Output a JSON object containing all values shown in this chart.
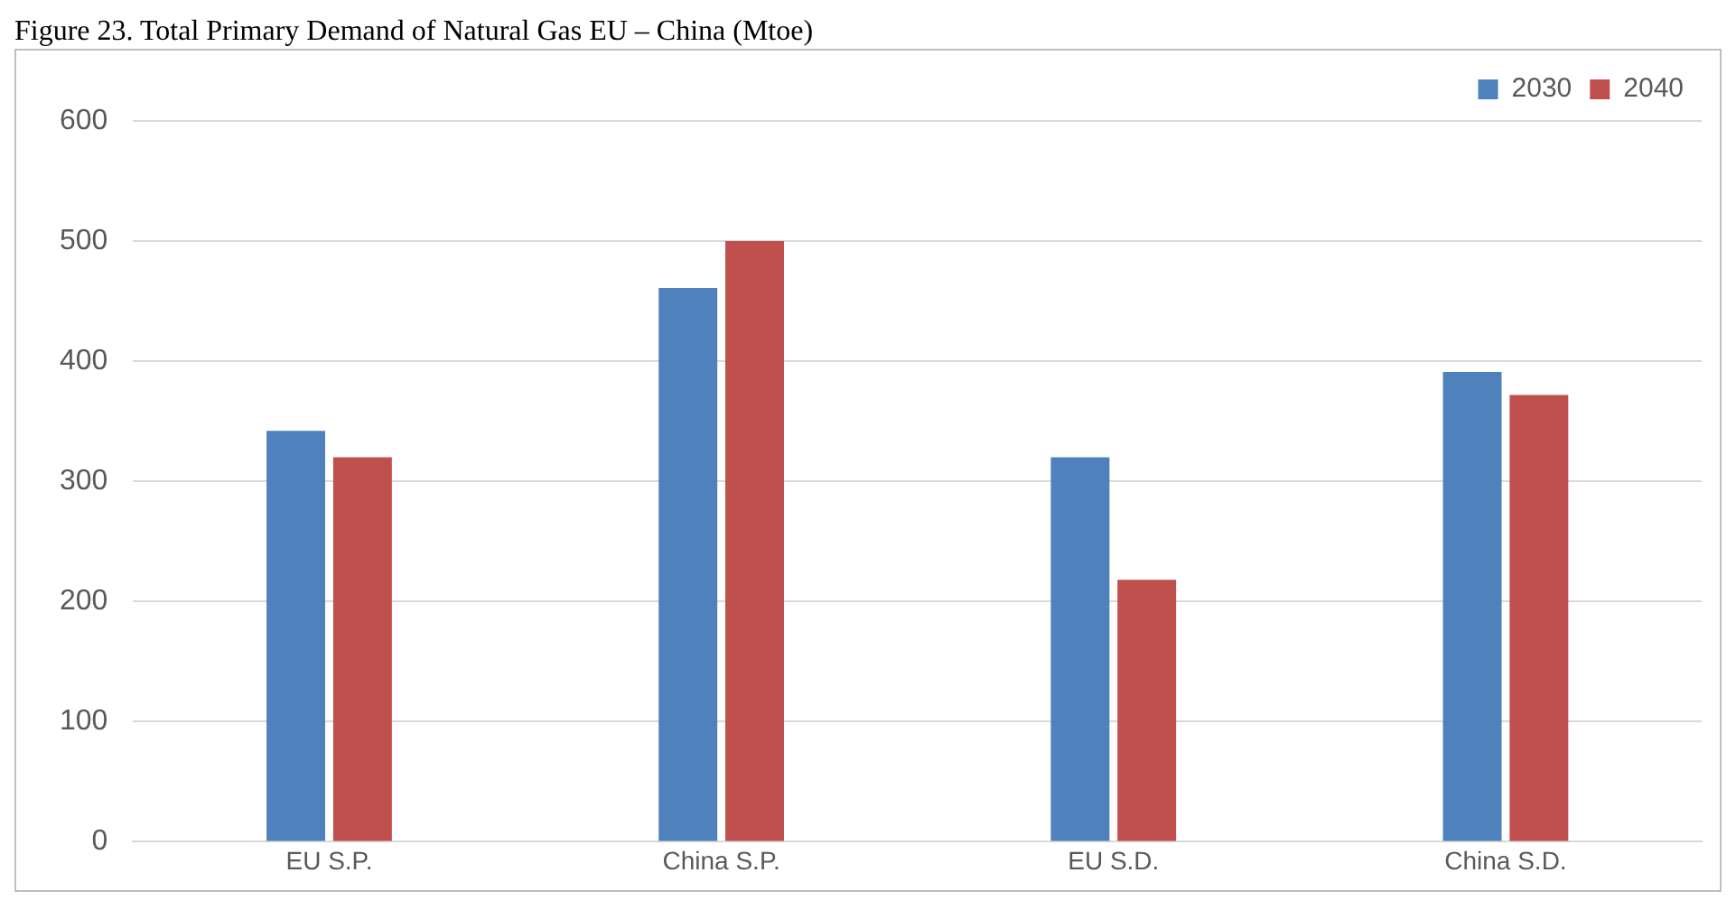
{
  "chart_data": {
    "type": "bar",
    "title": "Figure 23. Total Primary Demand of Natural Gas EU – China (Mtoe)",
    "categories": [
      "EU S.P.",
      "China S.P.",
      "EU S.D.",
      "China S.D."
    ],
    "series": [
      {
        "name": "2030",
        "color": "#4f81bd",
        "values": [
          342,
          461,
          320,
          391
        ]
      },
      {
        "name": "2040",
        "color": "#c0504d",
        "values": [
          320,
          500,
          218,
          372
        ]
      }
    ],
    "ylim": [
      0,
      600
    ],
    "yticks": [
      0,
      100,
      200,
      300,
      400,
      500,
      600
    ],
    "grid": "y",
    "legend": "top right"
  }
}
